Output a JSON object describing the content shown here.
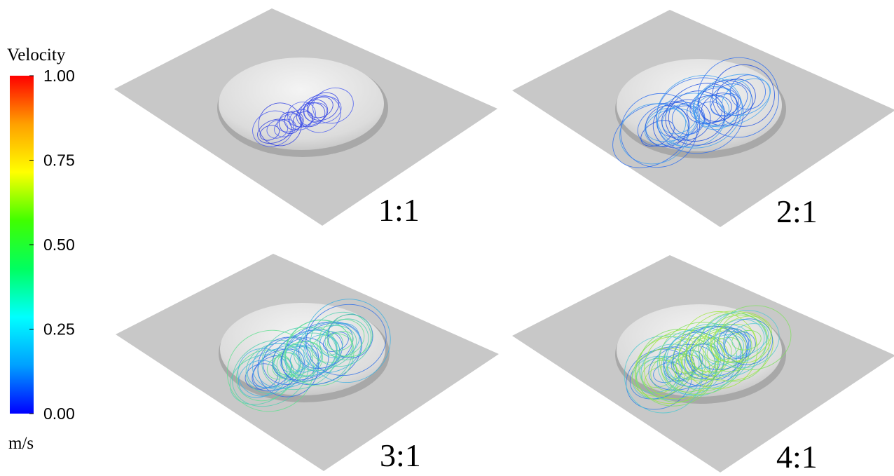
{
  "colorbar": {
    "title": "Velocity",
    "unit": "m/s",
    "range": [
      0,
      1
    ],
    "ticks": [
      {
        "value": 0,
        "label": "0.00"
      },
      {
        "value": 0.25,
        "label": "0.25"
      },
      {
        "value": 0.5,
        "label": "0.50"
      },
      {
        "value": 0.75,
        "label": "0.75"
      },
      {
        "value": 1,
        "label": "1.00"
      }
    ],
    "colors": [
      "#0000ff",
      "#00a0ff",
      "#00ffff",
      "#00ff60",
      "#40ff00",
      "#ffff00",
      "#ffa000",
      "#ff0000"
    ]
  },
  "panels": [
    {
      "label": "1:1"
    },
    {
      "label": "2:1"
    },
    {
      "label": "3:1"
    },
    {
      "label": "4:1"
    }
  ]
}
